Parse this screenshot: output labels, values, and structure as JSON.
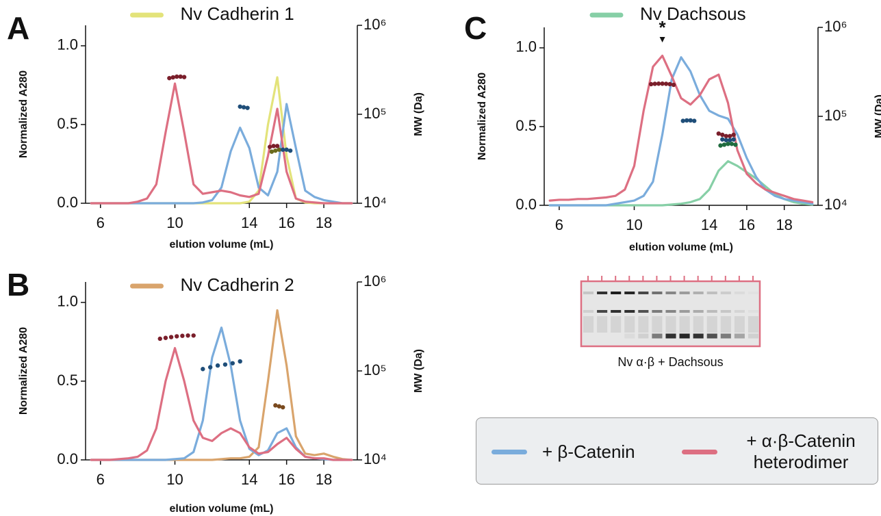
{
  "chart_data": [
    {
      "type": "line",
      "panel_label": "A",
      "x": [
        5.5,
        6,
        6.5,
        7,
        7.5,
        8,
        8.5,
        9,
        9.5,
        10,
        10.5,
        11,
        11.5,
        12,
        12.5,
        13,
        13.5,
        14,
        14.5,
        15,
        15.5,
        16,
        16.5,
        17,
        17.5,
        18,
        18.5,
        19,
        19.5
      ],
      "series": [
        {
          "name": "Nv Cadherin 1",
          "color": "#e3e37a",
          "values": [
            0,
            0,
            0,
            0,
            0,
            0,
            0,
            0,
            0,
            0,
            0,
            0,
            0,
            0,
            0,
            0,
            0,
            0.01,
            0.08,
            0.5,
            0.8,
            0.3,
            0.03,
            0.005,
            0,
            0,
            0,
            0,
            0
          ]
        },
        {
          "color": "#7aacdc",
          "values": [
            0,
            0,
            0,
            0,
            0,
            0,
            0,
            0,
            0,
            0,
            0,
            0,
            0.005,
            0.02,
            0.1,
            0.33,
            0.48,
            0.35,
            0.1,
            0.05,
            0.2,
            0.63,
            0.35,
            0.08,
            0.04,
            0.02,
            0.01,
            0,
            0
          ]
        },
        {
          "color": "#dd6f82",
          "values": [
            0,
            0,
            0,
            0,
            0,
            0.01,
            0.03,
            0.12,
            0.45,
            0.76,
            0.45,
            0.12,
            0.06,
            0.07,
            0.08,
            0.07,
            0.05,
            0.04,
            0.06,
            0.3,
            0.6,
            0.2,
            0.03,
            0.01,
            0.005,
            0,
            0,
            0,
            0
          ]
        },
        {
          "type": "scatter",
          "axis": "y2",
          "color": "#7a1f2b",
          "x": [
            9.7,
            9.9,
            10.1,
            10.3,
            10.5
          ],
          "values": [
            255000,
            260000,
            265000,
            265000,
            262000
          ]
        },
        {
          "type": "scatter",
          "axis": "y2",
          "color": "#1f4e79",
          "x": [
            13.5,
            13.7,
            13.9
          ],
          "values": [
            122000,
            120000,
            118000
          ]
        },
        {
          "type": "scatter",
          "axis": "y2",
          "color": "#6b6b1e",
          "x": [
            15.2,
            15.4,
            15.6
          ],
          "values": [
            38000,
            39000,
            40000
          ]
        },
        {
          "type": "scatter",
          "axis": "y2",
          "color": "#7a1f2b",
          "x": [
            15.1,
            15.3,
            15.5
          ],
          "values": [
            43000,
            44000,
            44000
          ]
        },
        {
          "type": "scatter",
          "axis": "y2",
          "color": "#1f4e79",
          "x": [
            15.8,
            16,
            16.2
          ],
          "values": [
            40000,
            40000,
            39000
          ]
        }
      ],
      "xlim": [
        5.2,
        19.8
      ],
      "xticks": [
        6,
        10,
        14,
        16,
        18
      ],
      "ylim": [
        0,
        1.13
      ],
      "yticks": [
        {
          "value": 0,
          "label": "0.0"
        },
        0.5,
        {
          "value": 1,
          "label": "1.0"
        }
      ],
      "y2lim": [
        10000,
        1000000
      ],
      "y2log": true,
      "y2ticks": [
        {
          "value": 10000,
          "label": "10⁴"
        },
        {
          "value": 100000,
          "label": "10⁵"
        },
        {
          "value": 1000000,
          "label": "10⁶"
        }
      ],
      "xlabel": "elution volume (mL)",
      "ylabel": "Normalized A280",
      "y2label": "MW (Da)"
    },
    {
      "type": "line",
      "panel_label": "B",
      "x": [
        5.5,
        6,
        6.5,
        7,
        7.5,
        8,
        8.5,
        9,
        9.5,
        10,
        10.5,
        11,
        11.5,
        12,
        12.5,
        13,
        13.5,
        14,
        14.5,
        15,
        15.5,
        16,
        16.5,
        17,
        17.5,
        18,
        18.5,
        19,
        19.5
      ],
      "series": [
        {
          "name": "Nv Cadherin 2",
          "color": "#d9a46c",
          "values": [
            0,
            0,
            0,
            0,
            0,
            0,
            0,
            0,
            0,
            0,
            0,
            0,
            0,
            0,
            0.005,
            0.01,
            0.01,
            0.02,
            0.08,
            0.5,
            0.95,
            0.6,
            0.15,
            0.04,
            0.03,
            0.04,
            0.02,
            0.005,
            0
          ]
        },
        {
          "color": "#7aacdc",
          "values": [
            0,
            0,
            0,
            0,
            0,
            0,
            0,
            0,
            0,
            0.005,
            0.01,
            0.05,
            0.25,
            0.65,
            0.84,
            0.6,
            0.25,
            0.07,
            0.03,
            0.06,
            0.17,
            0.2,
            0.08,
            0.02,
            0.01,
            0.005,
            0,
            0,
            0
          ]
        },
        {
          "color": "#dd6f82",
          "values": [
            0,
            0,
            0,
            0.005,
            0.01,
            0.02,
            0.06,
            0.2,
            0.5,
            0.71,
            0.5,
            0.25,
            0.14,
            0.12,
            0.17,
            0.2,
            0.17,
            0.08,
            0.04,
            0.05,
            0.1,
            0.14,
            0.07,
            0.02,
            0.01,
            0.01,
            0,
            0,
            0
          ]
        },
        {
          "type": "scatter",
          "axis": "y2",
          "color": "#7a1f2b",
          "x": [
            9.2,
            9.5,
            9.8,
            10.1,
            10.4,
            10.7,
            11
          ],
          "values": [
            230000,
            235000,
            240000,
            245000,
            248000,
            250000,
            250000
          ]
        },
        {
          "type": "scatter",
          "axis": "y2",
          "color": "#1f4e79",
          "x": [
            11.5,
            11.9,
            12.3,
            12.7,
            13.1,
            13.5
          ],
          "values": [
            105000,
            110000,
            115000,
            118000,
            122000,
            128000
          ]
        },
        {
          "type": "scatter",
          "axis": "y2",
          "color": "#7a4a1e",
          "x": [
            15.4,
            15.6,
            15.8
          ],
          "values": [
            41000,
            40000,
            39000
          ]
        }
      ],
      "xlim": [
        5.2,
        19.8
      ],
      "xticks": [
        6,
        10,
        14,
        16,
        18
      ],
      "ylim": [
        0,
        1.13
      ],
      "yticks": [
        {
          "value": 0,
          "label": "0.0"
        },
        0.5,
        {
          "value": 1,
          "label": "1.0"
        }
      ],
      "y2lim": [
        10000,
        1000000
      ],
      "y2log": true,
      "y2ticks": [
        {
          "value": 10000,
          "label": "10⁴"
        },
        {
          "value": 100000,
          "label": "10⁵"
        },
        {
          "value": 1000000,
          "label": "10⁶"
        }
      ],
      "xlabel": "elution volume (mL)",
      "ylabel": "Normalized A280",
      "y2label": "MW (Da)"
    },
    {
      "type": "line",
      "panel_label": "C",
      "x": [
        5.5,
        6,
        6.5,
        7,
        7.5,
        8,
        8.5,
        9,
        9.5,
        10,
        10.5,
        11,
        11.5,
        12,
        12.5,
        13,
        13.5,
        14,
        14.5,
        15,
        15.5,
        16,
        16.5,
        17,
        17.5,
        18,
        18.5,
        19,
        19.5
      ],
      "series": [
        {
          "name": "Nv Dachsous",
          "color": "#86cfa6",
          "values": [
            0,
            0,
            0,
            0,
            0,
            0,
            0,
            0,
            0,
            0,
            0,
            0,
            0,
            0.005,
            0.01,
            0.02,
            0.04,
            0.1,
            0.22,
            0.28,
            0.25,
            0.21,
            0.17,
            0.12,
            0.07,
            0.04,
            0.02,
            0.01,
            0.005
          ]
        },
        {
          "color": "#7aacdc",
          "values": [
            0,
            0,
            0,
            0,
            0,
            0,
            0,
            0.01,
            0.02,
            0.03,
            0.06,
            0.15,
            0.45,
            0.8,
            0.94,
            0.85,
            0.7,
            0.6,
            0.57,
            0.55,
            0.45,
            0.3,
            0.18,
            0.1,
            0.06,
            0.04,
            0.03,
            0.02,
            0.01
          ]
        },
        {
          "color": "#dd6f82",
          "values": [
            0.03,
            0.035,
            0.035,
            0.04,
            0.04,
            0.045,
            0.05,
            0.06,
            0.1,
            0.25,
            0.6,
            0.88,
            0.95,
            0.82,
            0.68,
            0.64,
            0.7,
            0.8,
            0.83,
            0.65,
            0.35,
            0.2,
            0.14,
            0.1,
            0.08,
            0.06,
            0.04,
            0.03,
            0.02
          ]
        },
        {
          "type": "scatter",
          "axis": "y2",
          "color": "#7a1f2b",
          "x": [
            10.9,
            11.1,
            11.3,
            11.5,
            11.7,
            11.9,
            12.1
          ],
          "values": [
            230000,
            232000,
            233000,
            233000,
            232000,
            230000,
            226000
          ]
        },
        {
          "type": "scatter",
          "axis": "y2",
          "color": "#1f4e79",
          "x": [
            12.6,
            12.8,
            13,
            13.2
          ],
          "values": [
            89000,
            90000,
            90000,
            89000
          ]
        },
        {
          "type": "scatter",
          "axis": "y2",
          "color": "#7a1f2b",
          "x": [
            14.5,
            14.7,
            14.9,
            15.1,
            15.3
          ],
          "values": [
            64000,
            62000,
            60000,
            60000,
            62000
          ]
        },
        {
          "type": "scatter",
          "axis": "y2",
          "color": "#1f4e79",
          "x": [
            14.7,
            14.9,
            15.1,
            15.3
          ],
          "values": [
            55000,
            54000,
            54000,
            55000
          ]
        },
        {
          "type": "scatter",
          "axis": "y2",
          "color": "#1f6b3e",
          "x": [
            14.6,
            14.8,
            15,
            15.2,
            15.4
          ],
          "values": [
            47000,
            48000,
            49000,
            49000,
            48000
          ]
        }
      ],
      "xlim": [
        5.2,
        19.8
      ],
      "xticks": [
        6,
        10,
        14,
        16,
        18
      ],
      "ylim": [
        0,
        1.13
      ],
      "yticks": [
        {
          "value": 0,
          "label": "0.0"
        },
        0.5,
        {
          "value": 1,
          "label": "1.0"
        }
      ],
      "y2lim": [
        10000,
        1000000
      ],
      "y2log": true,
      "y2ticks": [
        {
          "value": 10000,
          "label": "10⁴"
        },
        {
          "value": 100000,
          "label": "10⁵"
        },
        {
          "value": 1000000,
          "label": "10⁶"
        }
      ],
      "annotations": [
        {
          "text": "*",
          "x": 11.5
        }
      ],
      "xlabel": "elution volume (mL)",
      "ylabel": "Normalized A280",
      "y2label": "MW (Da)"
    }
  ],
  "gel": {
    "caption": "Nv α·β + Dachsous"
  },
  "legend": {
    "entries": [
      {
        "name": "+ β-Catenin",
        "color": "#7aacdc"
      },
      {
        "name": "+ α·β-Catenin heterodimer",
        "color": "#dd6f82"
      }
    ]
  }
}
